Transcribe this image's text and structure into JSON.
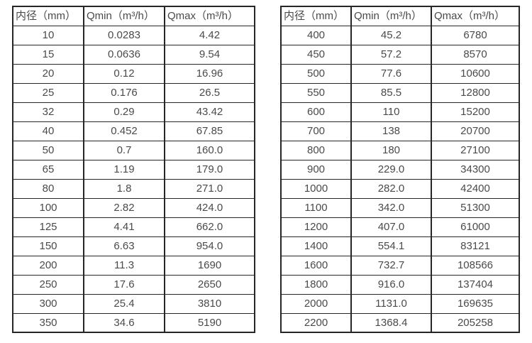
{
  "tables": [
    {
      "name": "small-diameter-flow-range",
      "headers": [
        "内径（mm）",
        "Qmin（m³/h）",
        "Qmax（m³/h）"
      ],
      "rows": [
        [
          "10",
          "0.0283",
          "4.42"
        ],
        [
          "15",
          "0.0636",
          "9.54"
        ],
        [
          "20",
          "0.12",
          "16.96"
        ],
        [
          "25",
          "0.176",
          "26.5"
        ],
        [
          "32",
          "0.29",
          "43.42"
        ],
        [
          "40",
          "0.452",
          "67.85"
        ],
        [
          "50",
          "0.7",
          "160.0"
        ],
        [
          "65",
          "1.19",
          "179.0"
        ],
        [
          "80",
          "1.8",
          "271.0"
        ],
        [
          "100",
          "2.82",
          "424.0"
        ],
        [
          "125",
          "4.41",
          "662.0"
        ],
        [
          "150",
          "6.63",
          "954.0"
        ],
        [
          "200",
          "11.3",
          "1690"
        ],
        [
          "250",
          "17.6",
          "2650"
        ],
        [
          "300",
          "25.4",
          "3810"
        ],
        [
          "350",
          "34.6",
          "5190"
        ]
      ]
    },
    {
      "name": "large-diameter-flow-range",
      "headers": [
        "内径（mm）",
        "Qmin（m³/h）",
        "Qmax（m³/h）"
      ],
      "rows": [
        [
          "400",
          "45.2",
          "6780"
        ],
        [
          "450",
          "57.2",
          "8570"
        ],
        [
          "500",
          "77.6",
          "10600"
        ],
        [
          "550",
          "85.5",
          "12800"
        ],
        [
          "600",
          "110",
          "15200"
        ],
        [
          "700",
          "138",
          "20700"
        ],
        [
          "800",
          "180",
          "27100"
        ],
        [
          "900",
          "229.0",
          "34300"
        ],
        [
          "1000",
          "282.0",
          "42400"
        ],
        [
          "1100",
          "342.0",
          "51300"
        ],
        [
          "1200",
          "407.0",
          "61000"
        ],
        [
          "1400",
          "554.1",
          "83121"
        ],
        [
          "1600",
          "732.7",
          "108566"
        ],
        [
          "1800",
          "916.0",
          "137404"
        ],
        [
          "2000",
          "1131.0",
          "169635"
        ],
        [
          "2200",
          "1368.4",
          "205258"
        ]
      ]
    },
    {
      "border_color": "#262626",
      "text_color": "#4a4a4a",
      "background_color": "#ffffff"
    }
  ]
}
